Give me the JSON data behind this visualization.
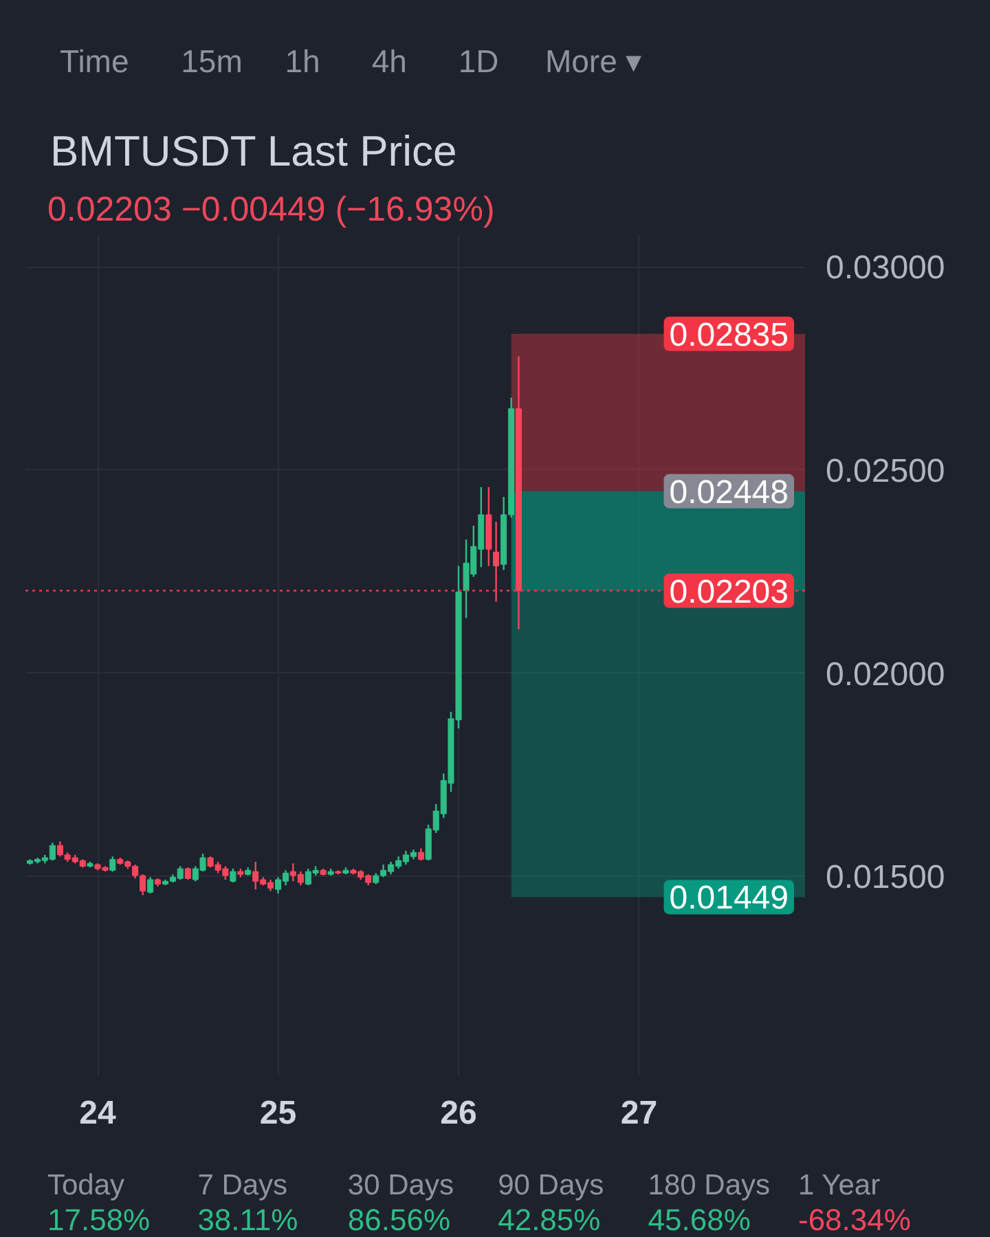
{
  "chart_data": [
    {
      "type": "other",
      "annotations": [
        "Time",
        "15m",
        "1h",
        "4h",
        "1D",
        "More ▾"
      ]
    },
    {
      "type": "candlestick",
      "title": "BMTUSDT Last Price",
      "subtitle": "0.02203  −0.00449 (−16.93%)",
      "x": [
        23.625,
        23.667,
        23.708,
        23.75,
        23.792,
        23.833,
        23.875,
        23.917,
        23.958,
        24,
        24.042,
        24.083,
        24.125,
        24.167,
        24.208,
        24.25,
        24.292,
        24.333,
        24.375,
        24.417,
        24.458,
        24.5,
        24.542,
        24.583,
        24.625,
        24.667,
        24.708,
        24.75,
        24.792,
        24.833,
        24.875,
        24.917,
        24.958,
        25,
        25.042,
        25.083,
        25.125,
        25.167,
        25.208,
        25.25,
        25.292,
        25.333,
        25.375,
        25.417,
        25.458,
        25.5,
        25.542,
        25.583,
        25.625,
        25.667,
        25.708,
        25.75,
        25.792,
        25.833,
        25.875,
        25.917,
        25.958,
        26,
        26.042,
        26.083,
        26.125,
        26.167,
        26.208,
        26.25,
        26.292,
        26.333
      ],
      "ohlc": [
        [
          0.01532,
          0.01542,
          0.01529,
          0.01539
        ],
        [
          0.01536,
          0.01546,
          0.01532,
          0.01542
        ],
        [
          0.01539,
          0.01553,
          0.01532,
          0.01546
        ],
        [
          0.01542,
          0.01583,
          0.01539,
          0.01576
        ],
        [
          0.01576,
          0.01586,
          0.01549,
          0.01553
        ],
        [
          0.01553,
          0.01559,
          0.01536,
          0.01542
        ],
        [
          0.01546,
          0.01553,
          0.01532,
          0.01536
        ],
        [
          0.01539,
          0.01542,
          0.01522,
          0.01525
        ],
        [
          0.01525,
          0.01536,
          0.01522,
          0.01532
        ],
        [
          0.01529,
          0.01532,
          0.01515,
          0.01519
        ],
        [
          0.01522,
          0.01525,
          0.01512,
          0.01515
        ],
        [
          0.01515,
          0.01549,
          0.01512,
          0.01542
        ],
        [
          0.01542,
          0.01546,
          0.01529,
          0.01532
        ],
        [
          0.01536,
          0.01539,
          0.01519,
          0.01525
        ],
        [
          0.01525,
          0.01529,
          0.01495,
          0.01502
        ],
        [
          0.01502,
          0.01505,
          0.01454,
          0.01464
        ],
        [
          0.01461,
          0.01498,
          0.01458,
          0.01492
        ],
        [
          0.01492,
          0.01495,
          0.01475,
          0.01481
        ],
        [
          0.01481,
          0.01492,
          0.01478,
          0.01488
        ],
        [
          0.01488,
          0.01505,
          0.01485,
          0.01498
        ],
        [
          0.01495,
          0.01525,
          0.01492,
          0.01519
        ],
        [
          0.01519,
          0.01522,
          0.01492,
          0.01495
        ],
        [
          0.01492,
          0.01525,
          0.01488,
          0.01519
        ],
        [
          0.01515,
          0.01556,
          0.01512,
          0.01546
        ],
        [
          0.01546,
          0.01549,
          0.01522,
          0.01525
        ],
        [
          0.01529,
          0.01536,
          0.01508,
          0.01515
        ],
        [
          0.01519,
          0.01525,
          0.01492,
          0.01502
        ],
        [
          0.01488,
          0.01519,
          0.01485,
          0.01512
        ],
        [
          0.01512,
          0.01519,
          0.01498,
          0.01505
        ],
        [
          0.01505,
          0.01522,
          0.01502,
          0.01515
        ],
        [
          0.01512,
          0.01536,
          0.01468,
          0.01488
        ],
        [
          0.01492,
          0.01498,
          0.01478,
          0.01481
        ],
        [
          0.01485,
          0.01492,
          0.01464,
          0.01471
        ],
        [
          0.01468,
          0.01498,
          0.01458,
          0.01492
        ],
        [
          0.01488,
          0.01515,
          0.01478,
          0.01508
        ],
        [
          0.01512,
          0.01532,
          0.01488,
          0.01502
        ],
        [
          0.01505,
          0.01512,
          0.01478,
          0.01485
        ],
        [
          0.01481,
          0.01519,
          0.01478,
          0.01512
        ],
        [
          0.01508,
          0.01525,
          0.01502,
          0.01515
        ],
        [
          0.01515,
          0.01519,
          0.01502,
          0.01505
        ],
        [
          0.01505,
          0.01519,
          0.01502,
          0.01512
        ],
        [
          0.01512,
          0.01515,
          0.01505,
          0.01508
        ],
        [
          0.01508,
          0.01522,
          0.01505,
          0.01515
        ],
        [
          0.01515,
          0.01519,
          0.01505,
          0.01508
        ],
        [
          0.01512,
          0.01515,
          0.01492,
          0.01498
        ],
        [
          0.01502,
          0.01505,
          0.01478,
          0.01485
        ],
        [
          0.01485,
          0.01508,
          0.01481,
          0.01502
        ],
        [
          0.01502,
          0.01529,
          0.01498,
          0.01515
        ],
        [
          0.01512,
          0.01536,
          0.01505,
          0.01529
        ],
        [
          0.01525,
          0.01549,
          0.01519,
          0.01539
        ],
        [
          0.01536,
          0.01563,
          0.01529,
          0.01553
        ],
        [
          0.01549,
          0.01566,
          0.01542,
          0.01559
        ],
        [
          0.01559,
          0.01569,
          0.01539,
          0.01542
        ],
        [
          0.01542,
          0.01627,
          0.01539,
          0.01617
        ],
        [
          0.01614,
          0.01678,
          0.01607,
          0.01661
        ],
        [
          0.01654,
          0.01753,
          0.01644,
          0.01736
        ],
        [
          0.01729,
          0.01905,
          0.01708,
          0.01888
        ],
        [
          0.01885,
          0.02264,
          0.01864,
          0.022
        ],
        [
          0.02203,
          0.02329,
          0.02136,
          0.02271
        ],
        [
          0.02244,
          0.02363,
          0.02237,
          0.02312
        ],
        [
          0.02305,
          0.02458,
          0.02261,
          0.0239
        ],
        [
          0.0239,
          0.02458,
          0.02264,
          0.02305
        ],
        [
          0.02298,
          0.02373,
          0.02176,
          0.02264
        ],
        [
          0.02268,
          0.02434,
          0.02254,
          0.0239
        ],
        [
          0.0239,
          0.02678,
          0.02383,
          0.02651
        ],
        [
          0.02651,
          0.0278,
          0.02108,
          0.02203
        ]
      ],
      "colors": [
        "#2ebd85",
        "#2ebd85",
        "#2ebd85",
        "#2ebd85",
        "#f6465d",
        "#f6465d",
        "#f6465d",
        "#f6465d",
        "#2ebd85",
        "#f6465d",
        "#f6465d",
        "#2ebd85",
        "#f6465d",
        "#f6465d",
        "#f6465d",
        "#f6465d",
        "#2ebd85",
        "#f6465d",
        "#2ebd85",
        "#2ebd85",
        "#2ebd85",
        "#f6465d",
        "#2ebd85",
        "#2ebd85",
        "#f6465d",
        "#f6465d",
        "#f6465d",
        "#2ebd85",
        "#f6465d",
        "#2ebd85",
        "#f6465d",
        "#f6465d",
        "#f6465d",
        "#2ebd85",
        "#2ebd85",
        "#f6465d",
        "#f6465d",
        "#2ebd85",
        "#2ebd85",
        "#f6465d",
        "#2ebd85",
        "#f6465d",
        "#2ebd85",
        "#f6465d",
        "#f6465d",
        "#f6465d",
        "#2ebd85",
        "#2ebd85",
        "#2ebd85",
        "#2ebd85",
        "#2ebd85",
        "#2ebd85",
        "#f6465d",
        "#2ebd85",
        "#2ebd85",
        "#2ebd85",
        "#2ebd85",
        "#2ebd85",
        "#2ebd85",
        "#2ebd85",
        "#2ebd85",
        "#f6465d",
        "#f6465d",
        "#2ebd85",
        "#2ebd85",
        "#f6465d"
      ],
      "xlim": [
        23.6,
        27.92
      ],
      "xticks": [
        24,
        25,
        26,
        27
      ],
      "ylim": [
        0.0101,
        0.0308
      ],
      "yticks": [
        {
          "value": 0.015,
          "label": "0.01500"
        },
        {
          "value": 0.02,
          "label": "0.02000"
        },
        {
          "value": 0.025,
          "label": "0.02500"
        },
        {
          "value": 0.03,
          "label": "0.03000"
        }
      ],
      "grid": true,
      "bands": [
        {
          "axis": "y",
          "from": 0.02448,
          "to": 0.02835,
          "label": "0.02835",
          "color": "#f23645"
        },
        {
          "axis": "y",
          "from": 0.01449,
          "to": 0.02448,
          "label": "0.01449",
          "color": "#089981"
        },
        {
          "axis": "y",
          "from": 0.02203,
          "to": 0.02448,
          "color": "#089981"
        }
      ],
      "ref_lines": [
        {
          "axis": "y",
          "value": 0.02203,
          "label": "0.02203",
          "color": "#f23645",
          "line_style": "dotted"
        }
      ],
      "annotations": [
        {
          "text": "0.02448",
          "y": 0.02448
        }
      ]
    },
    {
      "type": "other",
      "categories": [
        "Today",
        "7 Days",
        "30 Days",
        "90 Days",
        "180 Days",
        "1 Year"
      ],
      "values": [
        17.58,
        38.11,
        86.56,
        42.85,
        45.68,
        -68.34
      ],
      "value_labels": [
        "17.58%",
        "38.11%",
        "86.56%",
        "42.85%",
        "45.68%",
        "-68.34%"
      ]
    }
  ]
}
